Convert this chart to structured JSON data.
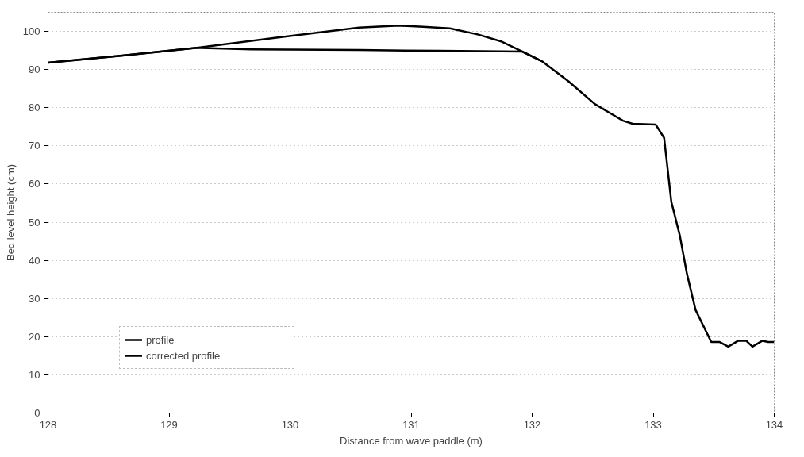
{
  "chart_data": {
    "type": "line",
    "xlabel": "Distance from wave paddle (m)",
    "ylabel": "Bed level height (cm)",
    "xlim": [
      128,
      134
    ],
    "xticks": [
      128,
      129,
      130,
      131,
      132,
      133,
      134
    ],
    "ylim": [
      0,
      105
    ],
    "yticks": [
      0,
      10,
      20,
      30,
      40,
      50,
      60,
      70,
      80,
      90,
      100
    ],
    "grid": "y",
    "legend": "bottom left",
    "marker": "none",
    "line_style": "solid",
    "series": [
      {
        "name": "profile",
        "color": "#000000",
        "x": [
          128.0,
          128.6,
          129.23,
          129.9,
          130.57,
          130.9,
          131.1,
          131.32,
          131.55,
          131.75,
          131.92,
          132.08,
          132.3,
          132.52,
          132.75,
          132.83,
          133.02,
          133.09,
          133.15,
          133.22,
          133.28,
          133.35,
          133.48,
          133.55,
          133.62,
          133.7,
          133.77,
          133.82,
          133.9,
          133.95,
          134.0
        ],
        "values": [
          91.8,
          93.6,
          95.7,
          98.4,
          101.0,
          101.5,
          101.2,
          100.8,
          99.2,
          97.3,
          94.7,
          92.2,
          86.9,
          80.9,
          76.6,
          75.8,
          75.6,
          72.1,
          55.3,
          46.5,
          36.3,
          27.0,
          18.6,
          18.6,
          17.4,
          18.9,
          18.9,
          17.4,
          18.9,
          18.6,
          18.6
        ]
      },
      {
        "name": "corrected profile",
        "color": "#000000",
        "x": [
          128.0,
          128.6,
          129.23,
          129.68,
          130.57,
          131.23,
          131.92,
          132.08
        ],
        "values": [
          91.8,
          93.6,
          95.7,
          95.3,
          95.1,
          94.9,
          94.7,
          92.2
        ]
      }
    ]
  }
}
